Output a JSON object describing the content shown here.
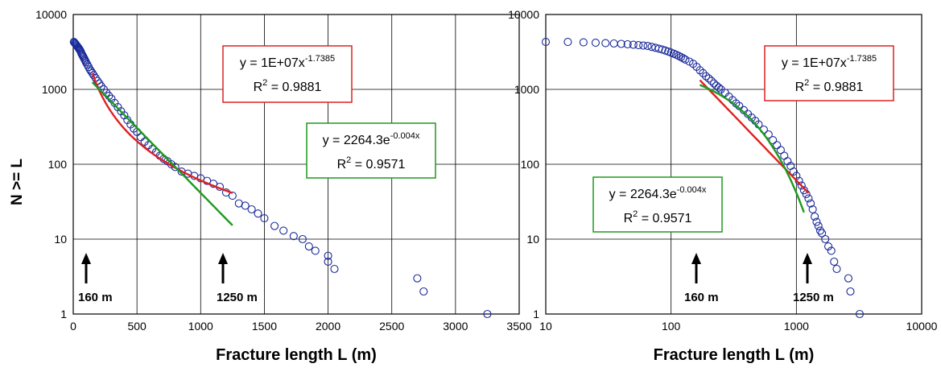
{
  "colors": {
    "points": "#1a2a9a",
    "power_fit": "#e02020",
    "exp_fit": "#1e9a1e",
    "grid": "#000000",
    "arrow": "#000000"
  },
  "ylabel": "N >= L",
  "chart_data": [
    {
      "type": "scatter",
      "x_scale": "linear",
      "y_scale": "log",
      "xlim": [
        0,
        3500
      ],
      "ylim": [
        1,
        10000
      ],
      "xticks": [
        "0",
        "500",
        "1000",
        "1500",
        "2000",
        "2500",
        "3000",
        "3500"
      ],
      "yticks": [
        "1",
        "10",
        "100",
        "1000",
        "10000"
      ],
      "xlabel": "Fracture length L (m)",
      "ylabel": "N >= L",
      "grid": true,
      "points": [
        [
          5,
          4300
        ],
        [
          10,
          4200
        ],
        [
          15,
          4100
        ],
        [
          20,
          4000
        ],
        [
          25,
          3900
        ],
        [
          30,
          3800
        ],
        [
          35,
          3700
        ],
        [
          40,
          3600
        ],
        [
          45,
          3500
        ],
        [
          50,
          3400
        ],
        [
          55,
          3300
        ],
        [
          60,
          3150
        ],
        [
          65,
          3000
        ],
        [
          70,
          2900
        ],
        [
          75,
          2800
        ],
        [
          80,
          2700
        ],
        [
          85,
          2600
        ],
        [
          90,
          2500
        ],
        [
          95,
          2400
        ],
        [
          100,
          2300
        ],
        [
          110,
          2150
        ],
        [
          120,
          2000
        ],
        [
          130,
          1850
        ],
        [
          140,
          1750
        ],
        [
          150,
          1650
        ],
        [
          160,
          1550
        ],
        [
          175,
          1420
        ],
        [
          190,
          1300
        ],
        [
          205,
          1200
        ],
        [
          220,
          1100
        ],
        [
          240,
          1000
        ],
        [
          260,
          900
        ],
        [
          280,
          820
        ],
        [
          300,
          750
        ],
        [
          325,
          660
        ],
        [
          350,
          580
        ],
        [
          375,
          510
        ],
        [
          400,
          450
        ],
        [
          425,
          390
        ],
        [
          450,
          340
        ],
        [
          475,
          300
        ],
        [
          500,
          270
        ],
        [
          530,
          230
        ],
        [
          560,
          200
        ],
        [
          590,
          180
        ],
        [
          620,
          160
        ],
        [
          650,
          145
        ],
        [
          680,
          130
        ],
        [
          710,
          118
        ],
        [
          740,
          110
        ],
        [
          770,
          100
        ],
        [
          800,
          92
        ],
        [
          850,
          80
        ],
        [
          900,
          75
        ],
        [
          950,
          70
        ],
        [
          1000,
          65
        ],
        [
          1050,
          60
        ],
        [
          1100,
          55
        ],
        [
          1150,
          50
        ],
        [
          1200,
          42
        ],
        [
          1250,
          38
        ],
        [
          1300,
          30
        ],
        [
          1350,
          28
        ],
        [
          1400,
          25
        ],
        [
          1450,
          22
        ],
        [
          1500,
          19
        ],
        [
          1580,
          15
        ],
        [
          1650,
          13
        ],
        [
          1730,
          11
        ],
        [
          1800,
          10
        ],
        [
          1850,
          8
        ],
        [
          1900,
          7
        ],
        [
          2000,
          6
        ],
        [
          2000,
          5
        ],
        [
          2050,
          4
        ],
        [
          2700,
          3
        ],
        [
          2750,
          2
        ],
        [
          3250,
          1
        ]
      ],
      "fits": [
        {
          "kind": "power",
          "equation": "y = 1E+07x",
          "exponent": "-1.7385",
          "r2_label": "R",
          "r2_value": " = 0.9881",
          "a": 10000000,
          "b": -1.7385,
          "x_range": [
            150,
            1250
          ]
        },
        {
          "kind": "exponential",
          "equation": "y = 2264.3e",
          "exponent": "-0.004x",
          "r2_label": "R",
          "r2_value": " = 0.9571",
          "a": 2264.3,
          "b": -0.004,
          "x_range": [
            150,
            1250
          ]
        }
      ],
      "markers": [
        {
          "value": 160,
          "label": "160 m"
        },
        {
          "value": 1250,
          "label": "1250 m"
        }
      ]
    },
    {
      "type": "scatter",
      "x_scale": "log",
      "y_scale": "log",
      "xlim": [
        10,
        10000
      ],
      "ylim": [
        1,
        10000
      ],
      "xticks": [
        "10",
        "100",
        "1000",
        "10000"
      ],
      "yticks": [
        "1",
        "10",
        "100",
        "1000",
        "10000"
      ],
      "xlabel": "Fracture length L (m)",
      "grid": true,
      "points": [
        [
          10,
          4300
        ],
        [
          15,
          4300
        ],
        [
          20,
          4250
        ],
        [
          25,
          4200
        ],
        [
          30,
          4150
        ],
        [
          35,
          4100
        ],
        [
          40,
          4050
        ],
        [
          45,
          4000
        ],
        [
          50,
          3950
        ],
        [
          55,
          3900
        ],
        [
          60,
          3850
        ],
        [
          65,
          3800
        ],
        [
          70,
          3700
        ],
        [
          75,
          3600
        ],
        [
          80,
          3500
        ],
        [
          85,
          3400
        ],
        [
          90,
          3300
        ],
        [
          95,
          3200
        ],
        [
          100,
          3100
        ],
        [
          105,
          3000
        ],
        [
          110,
          2900
        ],
        [
          115,
          2800
        ],
        [
          120,
          2700
        ],
        [
          125,
          2600
        ],
        [
          130,
          2500
        ],
        [
          140,
          2350
        ],
        [
          150,
          2200
        ],
        [
          160,
          2000
        ],
        [
          170,
          1800
        ],
        [
          180,
          1650
        ],
        [
          190,
          1500
        ],
        [
          200,
          1400
        ],
        [
          210,
          1300
        ],
        [
          220,
          1200
        ],
        [
          230,
          1120
        ],
        [
          240,
          1060
        ],
        [
          250,
          1000
        ],
        [
          270,
          900
        ],
        [
          290,
          800
        ],
        [
          310,
          720
        ],
        [
          330,
          650
        ],
        [
          350,
          600
        ],
        [
          380,
          530
        ],
        [
          410,
          470
        ],
        [
          440,
          420
        ],
        [
          470,
          380
        ],
        [
          500,
          340
        ],
        [
          550,
          290
        ],
        [
          600,
          250
        ],
        [
          650,
          210
        ],
        [
          700,
          180
        ],
        [
          750,
          155
        ],
        [
          800,
          130
        ],
        [
          850,
          110
        ],
        [
          900,
          95
        ],
        [
          950,
          80
        ],
        [
          1000,
          70
        ],
        [
          1050,
          60
        ],
        [
          1100,
          52
        ],
        [
          1150,
          45
        ],
        [
          1200,
          40
        ],
        [
          1250,
          35
        ],
        [
          1300,
          30
        ],
        [
          1350,
          25
        ],
        [
          1400,
          20
        ],
        [
          1450,
          17
        ],
        [
          1500,
          15
        ],
        [
          1550,
          13
        ],
        [
          1600,
          12
        ],
        [
          1700,
          10
        ],
        [
          1800,
          8
        ],
        [
          1900,
          7
        ],
        [
          2000,
          5
        ],
        [
          2100,
          4
        ],
        [
          2600,
          3
        ],
        [
          2700,
          2
        ],
        [
          3200,
          1
        ]
      ],
      "fits": [
        {
          "kind": "power",
          "equation": "y = 1E+07x",
          "exponent": "-1.7385",
          "r2_label": "R",
          "r2_value": " = 0.9881",
          "a": 10000000,
          "b": -1.7385,
          "x_range": [
            170,
            1250
          ]
        },
        {
          "kind": "exponential",
          "equation": "y = 2264.3e",
          "exponent": "-0.004x",
          "r2_label": "R",
          "r2_value": " = 0.9571",
          "a": 2264.3,
          "b": -0.004,
          "x_range": [
            170,
            1150
          ]
        }
      ],
      "markers": [
        {
          "value": 160,
          "label": "160 m"
        },
        {
          "value": 1250,
          "label": "1250 m"
        }
      ]
    }
  ]
}
